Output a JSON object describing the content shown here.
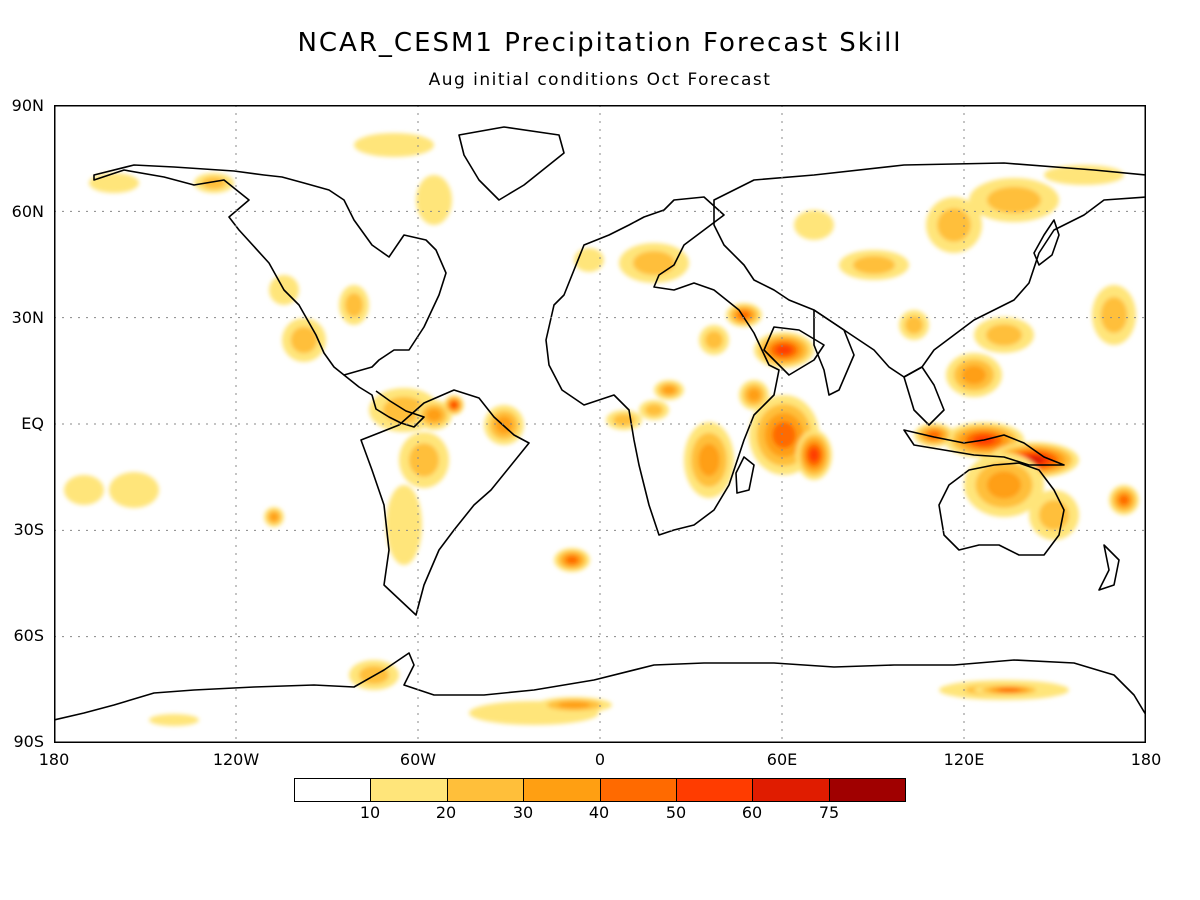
{
  "title": "NCAR_CESM1 Precipitation Forecast Skill",
  "subtitle": "Aug initial conditions  Oct Forecast",
  "lat_labels": [
    "90N",
    "60N",
    "30N",
    "EQ",
    "30S",
    "60S",
    "90S"
  ],
  "lon_labels": [
    "180",
    "120W",
    "60W",
    "0",
    "60E",
    "120E",
    "180"
  ],
  "legend": {
    "colors": [
      "#ffffff",
      "#ffe57a",
      "#ffbf3a",
      "#ff9f12",
      "#ff6a00",
      "#ff3c00",
      "#e01c00",
      "#a00000"
    ],
    "labels": [
      "10",
      "20",
      "30",
      "40",
      "50",
      "60",
      "75"
    ]
  },
  "map": {
    "projection": "equirectangular",
    "lon_range": [
      -180,
      180
    ],
    "lat_range": [
      -90,
      90
    ],
    "grid": true
  }
}
